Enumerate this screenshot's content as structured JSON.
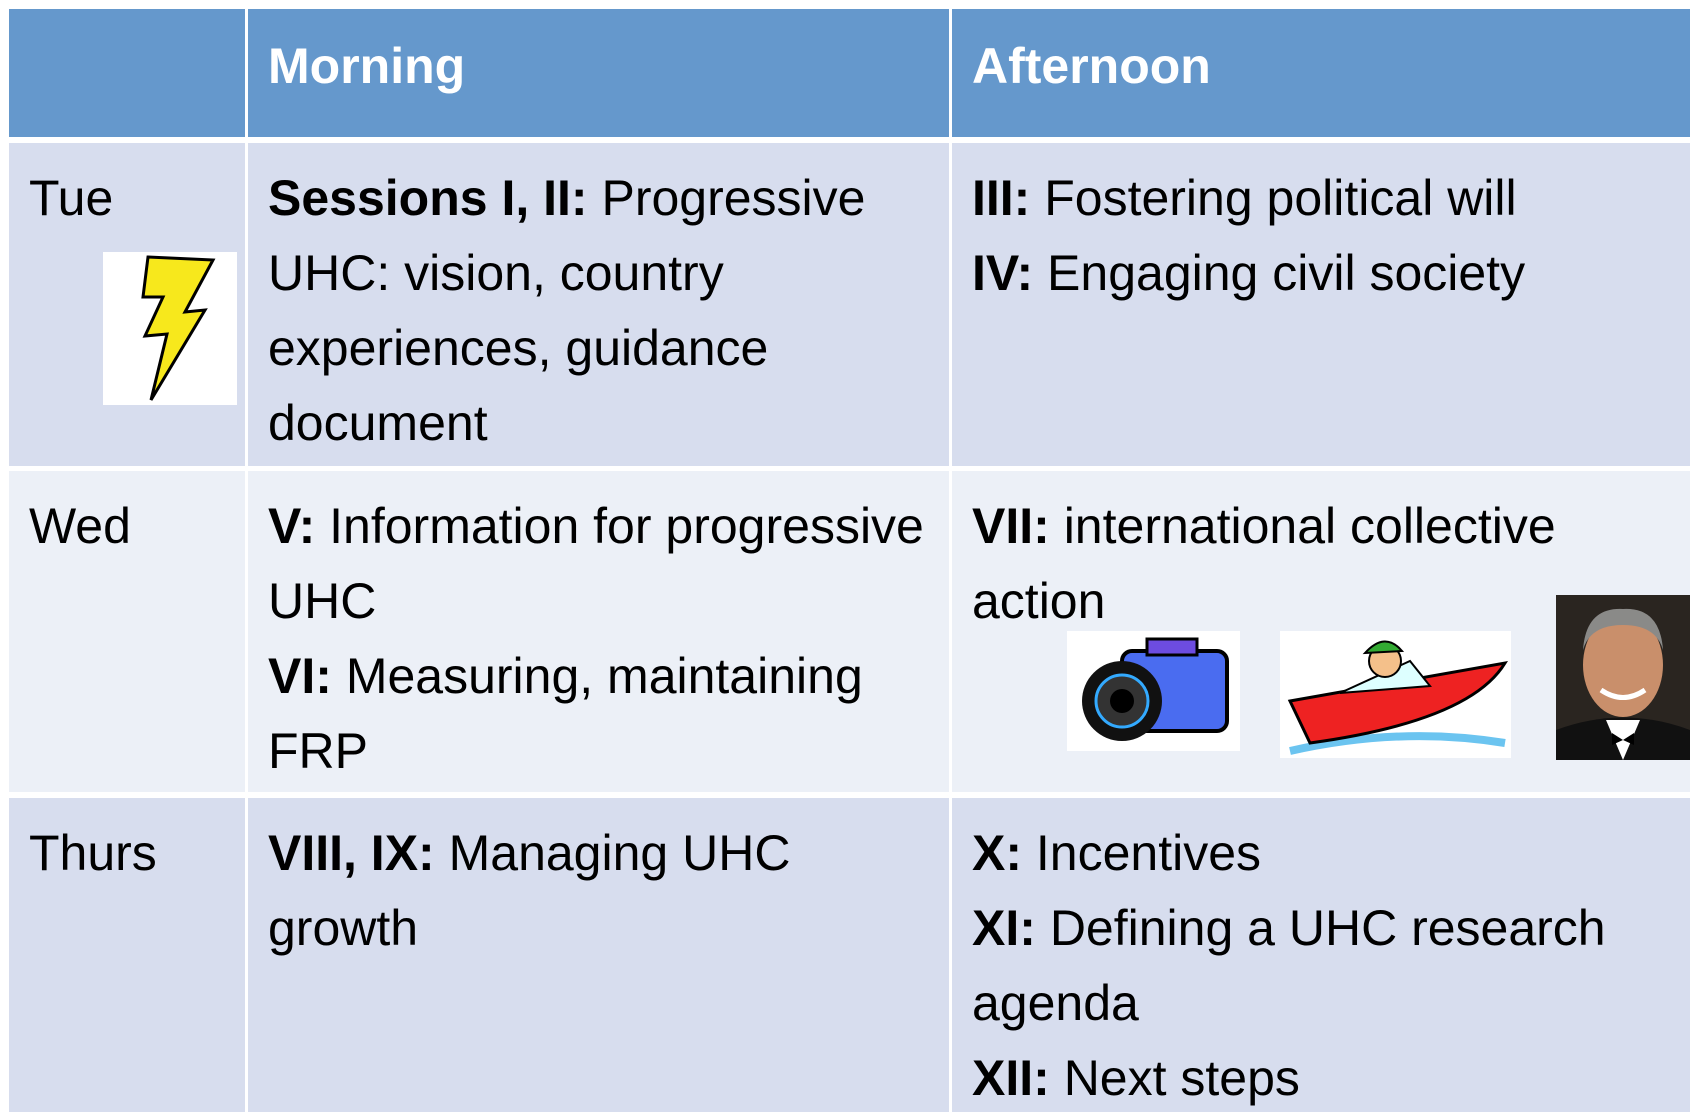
{
  "table": {
    "header": [
      "Morning",
      "Afternoon"
    ],
    "rows": [
      {
        "day": "Tue",
        "morning": [
          {
            "label": "Sessions I, II:",
            "text": "Progressive UHC: vision, country experiences, guidance document"
          }
        ],
        "afternoon": [
          {
            "label": "III:",
            "text": "Fostering political will"
          },
          {
            "label": "IV:",
            "text": "Engaging civil society"
          }
        ]
      },
      {
        "day": "Wed",
        "morning": [
          {
            "label": "V:",
            "text": "Information for progressive UHC"
          },
          {
            "label": "VI:",
            "text": "Measuring, maintaining FRP"
          }
        ],
        "afternoon": [
          {
            "label": "VII:",
            "text": "international collective action"
          }
        ]
      },
      {
        "day": "Thurs",
        "morning": [
          {
            "label": "VIII, IX:",
            "text": "Managing UHC growth"
          }
        ],
        "afternoon": [
          {
            "label": "X:",
            "text": "Incentives"
          },
          {
            "label": "XI:",
            "text": "Defining a UHC research agenda"
          },
          {
            "label": "XII:",
            "text": "Next steps"
          }
        ]
      }
    ]
  }
}
